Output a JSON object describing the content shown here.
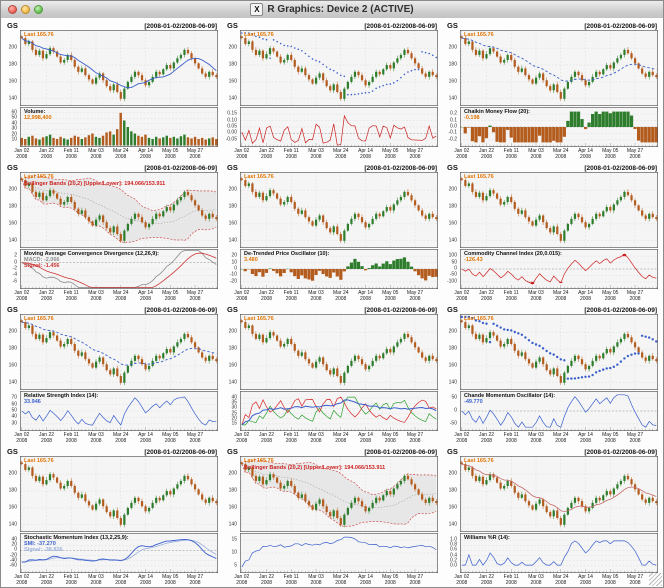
{
  "window": {
    "title": "R Graphics: Device 2 (ACTIVE)",
    "icon": "x11-icon",
    "controls": {
      "close": "close",
      "minimize": "minimize",
      "zoom": "zoom"
    }
  },
  "colors": {
    "up_candle": "#2d7d2d",
    "down_candle": "#b35c1e",
    "ma_line": "#3a5fcd",
    "bollinger_line": "#cc3333",
    "band_fill": "#e7e7e7",
    "band_mid": "#9a9a9a",
    "last_label": "#df7401",
    "value_orange": "#df7401",
    "value_blue": "#3a5fcd",
    "value_pale_blue": "#9db0dd",
    "macd_line": "#8a8a8a",
    "signal_line": "#cc3333",
    "osc_red": "#cc2222",
    "adx_green": "#2ca02c",
    "adx_red": "#d62728",
    "adx_blue": "#3a5fcd",
    "plot_bg": "#f5f5f5",
    "grid": "#d8d8d8",
    "frame": "#555555",
    "ema_pink": "#c46a6a"
  },
  "chart_data": {
    "type": "candlestick",
    "symbol": "GS",
    "date_range_label": "[2008-01-02/2008-06-09]",
    "last_price_label": "Last 165.76",
    "price_axis_ticks": [
      200,
      180,
      160,
      140
    ],
    "price_range": [
      135,
      218
    ],
    "x_tick_labels": [
      "Jan 02",
      "Jan 22",
      "Feb 11",
      "Mar 03",
      "Mar 24",
      "Apr 14",
      "May 05",
      "May 27"
    ],
    "x_tick_year": "2008",
    "x_tick_indices": [
      0,
      7,
      14,
      21,
      28,
      35,
      42,
      49
    ],
    "closes": [
      212,
      205,
      208,
      198,
      192,
      197,
      188,
      193,
      200,
      196,
      190,
      183,
      186,
      192,
      186,
      178,
      172,
      176,
      168,
      163,
      158,
      165,
      170,
      162,
      155,
      150,
      157,
      148,
      140,
      152,
      160,
      166,
      172,
      168,
      162,
      156,
      160,
      166,
      172,
      169,
      175,
      180,
      176,
      183,
      188,
      192,
      198,
      194,
      188,
      182,
      176,
      170,
      166,
      172,
      168,
      165.8
    ],
    "volumes": [
      14,
      12,
      16,
      18,
      13,
      11,
      15,
      17,
      20,
      14,
      12,
      16,
      13,
      11,
      14,
      18,
      16,
      12,
      15,
      19,
      22,
      16,
      14,
      18,
      24,
      26,
      20,
      30,
      60,
      46,
      34,
      26,
      22,
      18,
      16,
      20,
      14,
      12,
      16,
      13,
      15,
      18,
      14,
      16,
      13,
      17,
      20,
      15,
      13,
      16,
      12,
      14,
      11,
      13,
      15,
      12
    ],
    "panels": [
      {
        "overlay": "sma",
        "indicator": {
          "kind": "volume",
          "label": "Volume:",
          "value": "12,998,400",
          "value_color": "#df7401",
          "ticks": [
            "60",
            "50",
            "40",
            "30",
            "20",
            "10"
          ]
        }
      },
      {
        "overlay": "sar",
        "indicator": {
          "kind": "roc",
          "label": "",
          "value": "",
          "ticks": [
            "0.15",
            "0.10",
            "0.05",
            "0.00",
            "-0.05"
          ]
        }
      },
      {
        "overlay": "ema_dash",
        "indicator": {
          "kind": "cmf",
          "label": "Chaikin Money Flow (20):",
          "value": "-0.198",
          "value_color": "#df7401",
          "ticks": [
            "0.2",
            "0.1",
            "0.0",
            "-0.1",
            "-0.2"
          ]
        }
      },
      {
        "overlay": "bbands",
        "band_label": "Bollinger Bands (20,2) [Upper/Lower]: 194.066/153.911",
        "indicator": {
          "kind": "macd",
          "label": "Moving Average Convergence Divergence (12,26,9):",
          "value": "MACD: -2.066",
          "value_color": "#8a8a8a",
          "value2": "Signal: -1.456",
          "value2_color": "#cc3333",
          "ticks": [
            "2",
            "0",
            "-2",
            "-4",
            "-6"
          ]
        }
      },
      {
        "overlay": "none",
        "indicator": {
          "kind": "dpo",
          "label": "De-Trended Price Oscillator (10):",
          "value": "3.480",
          "value_color": "#df7401",
          "ticks": [
            "20",
            "10",
            "0",
            "-10",
            "-20"
          ]
        }
      },
      {
        "overlay": "none",
        "indicator": {
          "kind": "cci",
          "label": "Commodity Channel Index (20,0.015):",
          "value": "-126.43",
          "value_color": "#df7401",
          "ticks": [
            "100",
            "50",
            "0",
            "-50",
            "-100"
          ]
        }
      },
      {
        "overlay": "ema_dash",
        "indicator": {
          "kind": "rsi",
          "label": "Relative Strength Index (14):",
          "value": "33.946",
          "value_color": "#3a5fcd",
          "ticks": [
            "70",
            "60",
            "50",
            "40",
            "30"
          ]
        }
      },
      {
        "overlay": "none",
        "indicator": {
          "kind": "adx",
          "label": "",
          "value": "",
          "ticks": [
            "40",
            "35",
            "30",
            "25",
            "20",
            "15"
          ]
        }
      },
      {
        "overlay": "sar_thick",
        "indicator": {
          "kind": "cmo",
          "label": "Chande Momentum Oscillator (14):",
          "value": "-49.770",
          "value_color": "#3a5fcd",
          "ticks": [
            "50",
            "0",
            "-50"
          ]
        }
      },
      {
        "overlay": "none",
        "indicator": {
          "kind": "smi",
          "label": "Stochastic Momentum Index (13,2,25,9):",
          "value": "SMI: -37.270",
          "value_color": "#3a5fcd",
          "value2": "Signal: -38.826",
          "value2_color": "#9db0dd",
          "ticks": [
            "40",
            "20",
            "0",
            "-20",
            "-40",
            "-60"
          ]
        }
      },
      {
        "overlay": "bbands",
        "band_label": "Bollinger Bands (20,2) [Upper/Lower]: 194.066/153.911",
        "indicator": {
          "kind": "atr",
          "label": "",
          "value": "",
          "ticks": [
            "15",
            "10",
            "5"
          ]
        }
      },
      {
        "overlay": "ema_red",
        "indicator": {
          "kind": "wpr",
          "label": "Williams %R (14):",
          "value": "",
          "ticks": [
            "1.0",
            "0.8",
            "0.6",
            "0.4",
            "0.2",
            "0.0"
          ]
        }
      }
    ]
  }
}
